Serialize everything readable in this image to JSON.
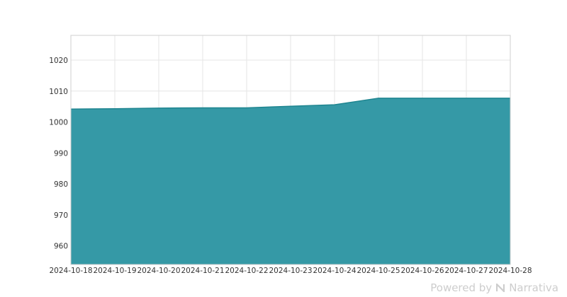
{
  "chart_data": {
    "type": "area",
    "x": [
      "2024-10-18",
      "2024-10-19",
      "2024-10-20",
      "2024-10-21",
      "2024-10-22",
      "2024-10-23",
      "2024-10-24",
      "2024-10-25",
      "2024-10-26",
      "2024-10-27",
      "2024-10-28"
    ],
    "series": [
      {
        "values": [
          1004.2,
          1004.3,
          1004.5,
          1004.6,
          1004.6,
          1005.1,
          1005.6,
          1007.7,
          1007.7,
          1007.7,
          1007.7
        ],
        "color": "#2e96a3"
      }
    ],
    "ylim": [
      954,
      1028
    ],
    "yticks": [
      960,
      970,
      980,
      990,
      1000,
      1010,
      1020
    ],
    "grid": true,
    "legend": "none",
    "colors": {
      "fill": "#2e96a3",
      "line": "#1f8590"
    }
  },
  "footer": {
    "powered_by": "Powered by",
    "brand": "Narrativa",
    "brand_icon": "narrativa-logo-icon"
  }
}
